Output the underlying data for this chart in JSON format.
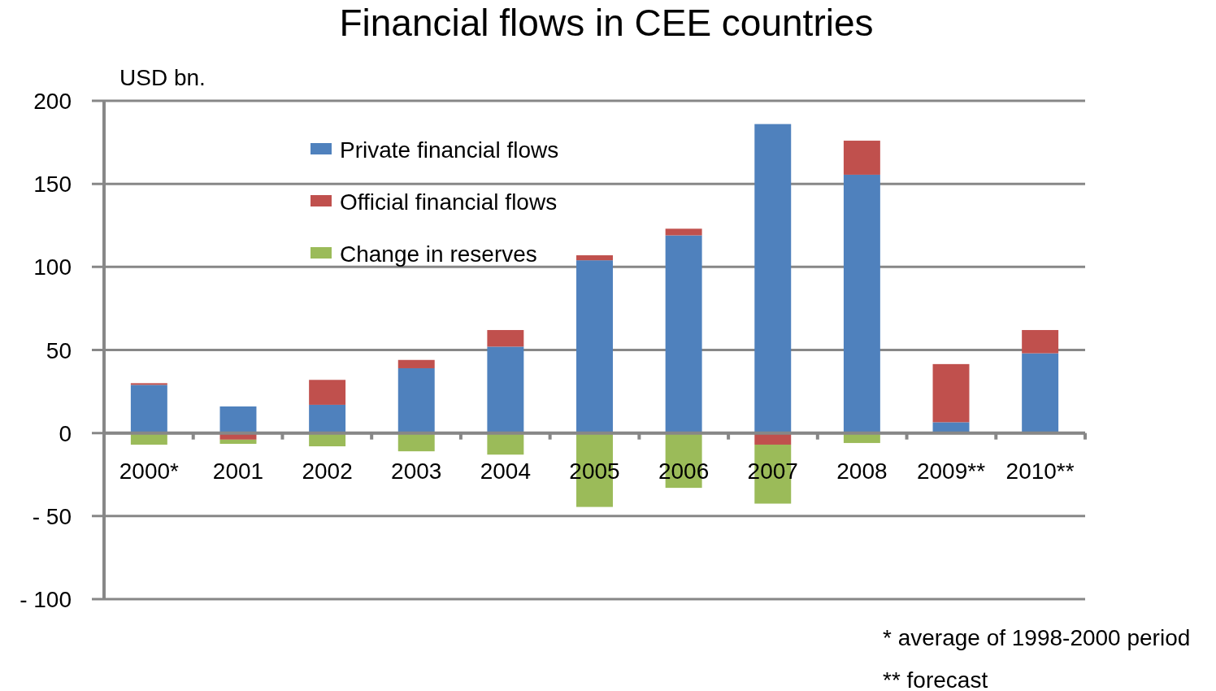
{
  "chart_data": {
    "type": "bar",
    "title": "Financial flows in CEE countries",
    "ylabel": "USD bn.",
    "stacked": true,
    "categories": [
      "2000*",
      "2001",
      "2002",
      "2003",
      "2004",
      "2005",
      "2006",
      "2007",
      "2008",
      "2009**",
      "2010**"
    ],
    "series": [
      {
        "name": "Private financial flows",
        "color": "#4f81bd",
        "values": [
          29,
          16,
          17,
          39,
          52,
          104,
          119,
          186,
          155.5,
          6.5,
          48
        ]
      },
      {
        "name": "Official financial flows",
        "color": "#c0504d",
        "values": [
          1,
          -4,
          15,
          5,
          10,
          3,
          4,
          -7,
          20.5,
          35,
          14
        ]
      },
      {
        "name": "Change in reserves",
        "color": "#9bbb59",
        "values": [
          -7,
          -2.5,
          -8,
          -11,
          -13,
          -44.5,
          -33,
          -35.5,
          -6,
          null,
          0
        ]
      }
    ],
    "ylim": [
      -100,
      200
    ],
    "yticks": [
      {
        "value": -100,
        "label": "- 100"
      },
      {
        "value": -50,
        "label": "- 50"
      },
      0,
      50,
      100,
      150,
      200
    ],
    "grid": "y",
    "legend": "top left",
    "annotations": [
      "* average of 1998-2000 period",
      "** forecast"
    ]
  }
}
